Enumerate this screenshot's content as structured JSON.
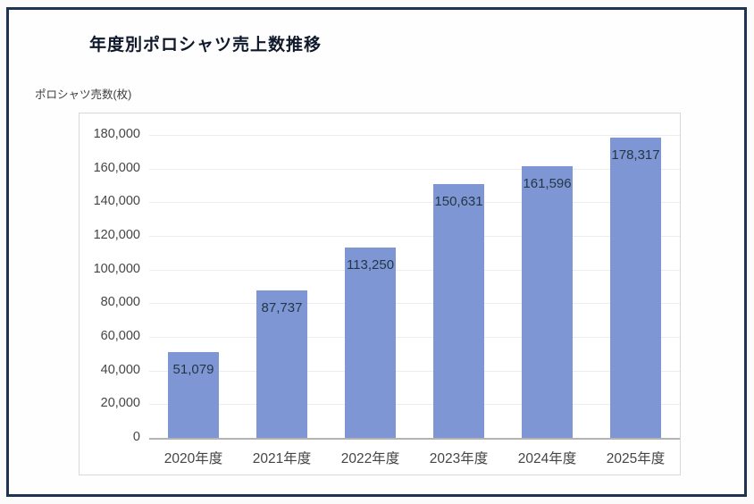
{
  "window": {
    "frame_color": "#1e3352",
    "background_color": "#fefefe"
  },
  "chart_data": {
    "type": "bar",
    "title": "年度別ポロシャツ売上数推移",
    "ylabel": "ポロシャツ売数(枚)",
    "xlabel": "",
    "categories": [
      "2020年度",
      "2021年度",
      "2022年度",
      "2023年度",
      "2024年度",
      "2025年度"
    ],
    "values": [
      51079,
      87737,
      113250,
      150631,
      161596,
      178317
    ],
    "value_labels": [
      "51,079",
      "87,737",
      "113,250",
      "150,631",
      "161,596",
      "178,317"
    ],
    "ylim": [
      0,
      180000
    ],
    "ytick_step": 20000,
    "ytick_labels": [
      "0",
      "20,000",
      "40,000",
      "60,000",
      "80,000",
      "100,000",
      "120,000",
      "140,000",
      "160,000",
      "180,000"
    ],
    "grid": true,
    "legend_position": "none",
    "bar_color": "#7e96d4",
    "value_label_color": "#243746",
    "gridline_color": "#ededed",
    "axis_line_color": "#b3b3b3"
  }
}
